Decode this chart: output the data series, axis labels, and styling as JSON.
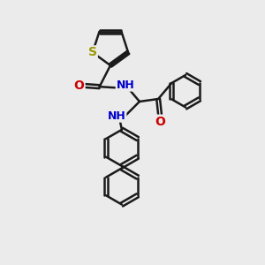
{
  "bg_color": "#ebebeb",
  "bond_color": "#1a1a1a",
  "bond_width": 1.8,
  "S_color": "#999900",
  "N_color": "#0000cc",
  "O_color": "#cc0000",
  "figsize": [
    3.0,
    3.0
  ],
  "dpi": 100,
  "xlim": [
    0,
    10
  ],
  "ylim": [
    0,
    10
  ]
}
